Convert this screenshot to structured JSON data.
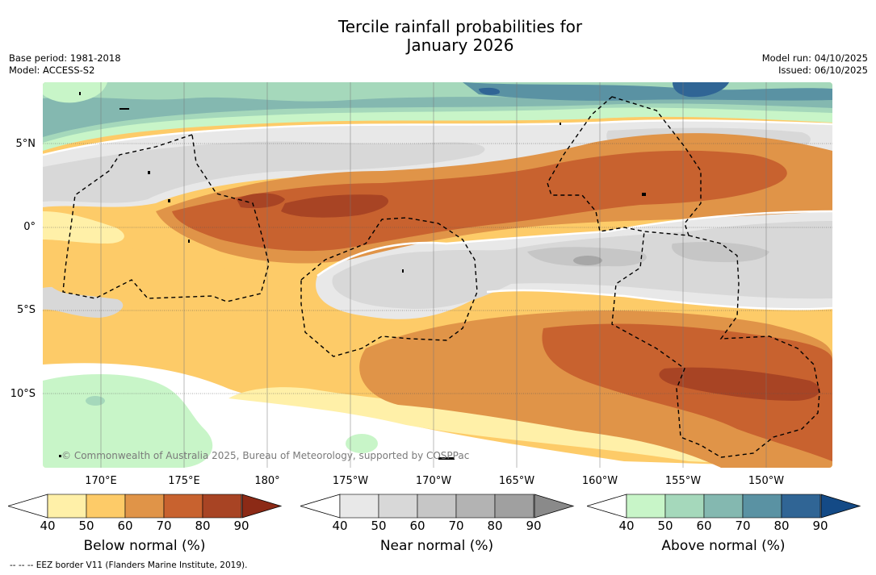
{
  "title": {
    "line1": "Tercile rainfall probabilities for",
    "line2": "January 2026"
  },
  "meta": {
    "base_period": "Base period: 1981-2018",
    "model": "Model: ACCESS-S2",
    "model_run": "Model run: 04/10/2025",
    "issued": "Issued: 06/10/2025"
  },
  "map": {
    "lat_labels": [
      "5°N",
      "0°",
      "5°S",
      "10°S"
    ],
    "lon_labels": [
      "170°E",
      "175°E",
      "180°",
      "175°W",
      "170°W",
      "165°W",
      "160°W",
      "155°W",
      "150°W"
    ],
    "copyright": "© Commonwealth of Australia 2025, Bureau of Meteorology, supported by COSPPac"
  },
  "colorbars": [
    {
      "label": "Below normal (%)",
      "ticks": [
        "40",
        "50",
        "60",
        "70",
        "80",
        "90"
      ],
      "colors": [
        "#fff0a8",
        "#fdcb68",
        "#e09448",
        "#c8622f",
        "#a84424",
        "#8c2a16"
      ]
    },
    {
      "label": "Near normal (%)",
      "ticks": [
        "40",
        "50",
        "60",
        "70",
        "80",
        "90"
      ],
      "colors": [
        "#e8e8e8",
        "#d8d8d8",
        "#c6c6c6",
        "#b3b3b3",
        "#a0a0a0",
        "#8a8a8a"
      ]
    },
    {
      "label": "Above normal (%)",
      "ticks": [
        "40",
        "50",
        "60",
        "70",
        "80",
        "90"
      ],
      "colors": [
        "#c8f5c8",
        "#a5d8bb",
        "#84b8b0",
        "#5a92a3",
        "#306595",
        "#144a86"
      ]
    }
  ],
  "footnote": "--  --  -- EEZ border V11 (Flanders Marine Institute, 2019).",
  "colors": {
    "below_light": "#fff0a8",
    "below_50": "#fdcb68",
    "below_60": "#e09448",
    "below_70": "#c8622f",
    "below_80": "#a84424",
    "near_40": "#e8e8e8",
    "near_50": "#d8d8d8",
    "near_60": "#c6c6c6",
    "near_70": "#a7a7a7",
    "above_40": "#c8f5c8",
    "above_50": "#a5d8bb",
    "above_60": "#84b8b0",
    "above_70": "#5a92a3",
    "above_80": "#306595"
  }
}
